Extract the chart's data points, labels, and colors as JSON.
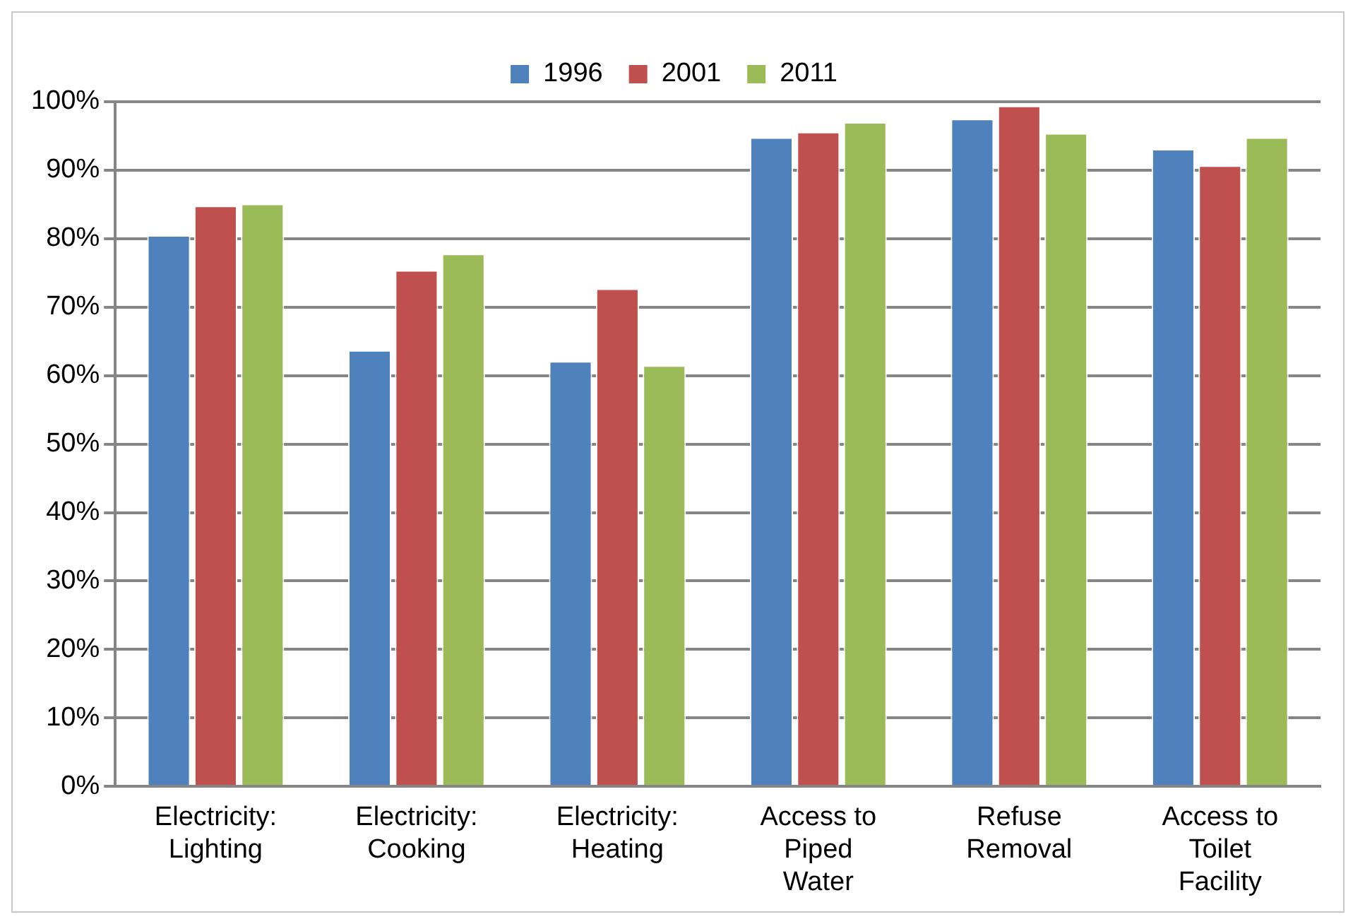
{
  "chart_data": {
    "type": "bar",
    "categories": [
      "Electricity: Lighting",
      "Electricity: Cooking",
      "Electricity: Heating",
      "Access to Piped Water",
      "Refuse Removal",
      "Access to Toilet Facility"
    ],
    "series": [
      {
        "name": "1996",
        "color": "#4f81bd",
        "values": [
          80.5,
          63.7,
          62.1,
          94.8,
          97.5,
          93.1
        ]
      },
      {
        "name": "2001",
        "color": "#c0504d",
        "values": [
          84.8,
          75.4,
          72.7,
          95.6,
          99.4,
          90.7
        ]
      },
      {
        "name": "2011",
        "color": "#9bbb59",
        "values": [
          85.1,
          77.8,
          61.5,
          97.0,
          95.4,
          94.8
        ]
      }
    ],
    "ylim": [
      0,
      100
    ],
    "yticks": [
      {
        "value": 0,
        "label": "0%"
      },
      {
        "value": 10,
        "label": "10%"
      },
      {
        "value": 20,
        "label": "20%"
      },
      {
        "value": 30,
        "label": "30%"
      },
      {
        "value": 40,
        "label": "40%"
      },
      {
        "value": 50,
        "label": "50%"
      },
      {
        "value": 60,
        "label": "60%"
      },
      {
        "value": 70,
        "label": "70%"
      },
      {
        "value": 80,
        "label": "80%"
      },
      {
        "value": 90,
        "label": "90%"
      },
      {
        "value": 100,
        "label": "100%"
      }
    ],
    "grid": "y",
    "legend": "top"
  }
}
